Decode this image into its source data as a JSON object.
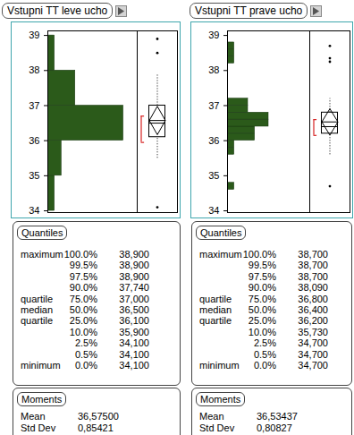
{
  "chart_data": [
    {
      "type": "histogram",
      "title": "Vstupni TT leve ucho",
      "orientation": "horizontal",
      "color": "#2b5a1a",
      "bins": [
        34,
        35,
        36,
        37,
        38,
        39
      ],
      "counts": [
        1,
        2,
        11,
        4,
        1
      ],
      "xlim": [
        0,
        13
      ],
      "xticks": [],
      "ylim": [
        33.95,
        39.13
      ],
      "yticks": [
        34,
        35,
        36,
        37,
        38,
        39
      ],
      "tick_labels": "y",
      "box_plot": {
        "quartiles": [
          36.1,
          36.5,
          37.0
        ],
        "whiskers": [
          35.5,
          37.9
        ],
        "outliers": [
          38.9,
          38.5,
          34.1
        ],
        "mean": 36.575,
        "mean_ci": [
          36.17,
          36.98
        ],
        "shortest_half": [
          35.95,
          36.7
        ]
      },
      "quantiles": {
        "title": "Quantiles",
        "rows": [
          [
            "maximum",
            "100.0%",
            "38,900"
          ],
          [
            null,
            "99.5%",
            "38,900"
          ],
          [
            null,
            "97.5%",
            "38,900"
          ],
          [
            null,
            "90.0%",
            "37,740"
          ],
          [
            "quartile",
            "75.0%",
            "37,000"
          ],
          [
            "median",
            "50.0%",
            "36,500"
          ],
          [
            "quartile",
            "25.0%",
            "36,100"
          ],
          [
            null,
            "10.0%",
            "35,900"
          ],
          [
            null,
            "2.5%",
            "34,100"
          ],
          [
            null,
            "0.5%",
            "34,100"
          ],
          [
            "minimum",
            "0.0%",
            "34,100"
          ]
        ]
      },
      "moments": {
        "title": "Moments",
        "rows": [
          [
            "Mean",
            "36,57500"
          ],
          [
            "Std Dev",
            "0,85421"
          ]
        ]
      }
    },
    {
      "type": "histogram",
      "title": "Vstupni TT prave ucho",
      "orientation": "horizontal",
      "color": "#2b5a1a",
      "bins": [
        34.6,
        34.8,
        35.0,
        35.2,
        35.4,
        35.6,
        35.8,
        36.0,
        36.2,
        36.4,
        36.6,
        36.8,
        37.0,
        37.2,
        37.4,
        37.6,
        37.8,
        38.0,
        38.2,
        38.4,
        38.6,
        38.8
      ],
      "counts": [
        1,
        0,
        0,
        0,
        0,
        1,
        1,
        4,
        4,
        6,
        6,
        3,
        3,
        0,
        0,
        0,
        0,
        0,
        1,
        1,
        1
      ],
      "xlim": [
        0,
        12
      ],
      "xticks": [],
      "ylim": [
        33.95,
        39.13
      ],
      "yticks": [
        34,
        35,
        36,
        37,
        38,
        39
      ],
      "tick_labels": "y",
      "box_plot": {
        "quartiles": [
          36.2,
          36.4,
          36.8
        ],
        "whiskers": [
          35.6,
          37.2
        ],
        "outliers": [
          38.7,
          38.35,
          38.25,
          34.7
        ],
        "mean": 36.53437,
        "mean_ci": [
          36.16,
          36.91
        ],
        "shortest_half": [
          36.15,
          36.6
        ]
      },
      "quantiles": {
        "title": "Quantiles",
        "rows": [
          [
            "maximum",
            "100.0%",
            "38,700"
          ],
          [
            null,
            "99.5%",
            "38,700"
          ],
          [
            null,
            "97.5%",
            "38,700"
          ],
          [
            null,
            "90.0%",
            "38,090"
          ],
          [
            "quartile",
            "75.0%",
            "36,800"
          ],
          [
            "median",
            "50.0%",
            "36,400"
          ],
          [
            "quartile",
            "25.0%",
            "36,200"
          ],
          [
            null,
            "10.0%",
            "35,730"
          ],
          [
            null,
            "2.5%",
            "34,700"
          ],
          [
            null,
            "0.5%",
            "34,700"
          ],
          [
            "minimum",
            "0.0%",
            "34,700"
          ]
        ]
      },
      "moments": {
        "title": "Moments",
        "rows": [
          [
            "Mean",
            "36,53437"
          ],
          [
            "Std Dev",
            "0,80827"
          ]
        ]
      }
    }
  ]
}
